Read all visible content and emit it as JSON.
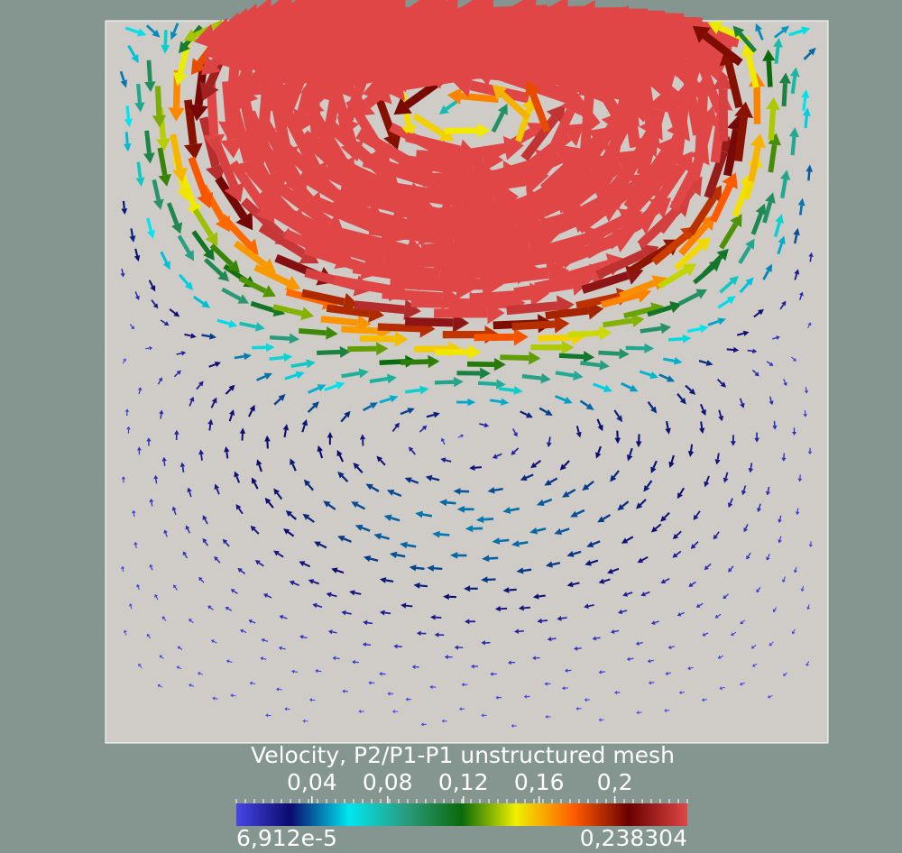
{
  "chart_data": {
    "type": "vector-field",
    "title": "Velocity, P2/P1-P1 unstructured mesh",
    "scalar_range": [
      6.912e-05,
      0.238304
    ],
    "range_labels": {
      "min": "6,912e-5",
      "max": "0,238304"
    },
    "colorbar_ticks": [
      {
        "value": 0.04,
        "label": "0,04"
      },
      {
        "value": 0.08,
        "label": "0,08"
      },
      {
        "value": 0.12,
        "label": "0,12"
      },
      {
        "value": 0.16,
        "label": "0,16"
      },
      {
        "value": 0.2,
        "label": "0,2"
      }
    ],
    "colormap": [
      {
        "t": 0.0,
        "color": "#4646e6"
      },
      {
        "t": 0.12,
        "color": "#0a0a6e"
      },
      {
        "t": 0.25,
        "color": "#00e6f0"
      },
      {
        "t": 0.38,
        "color": "#2a9a7a"
      },
      {
        "t": 0.5,
        "color": "#0a6a0a"
      },
      {
        "t": 0.62,
        "color": "#f0f000"
      },
      {
        "t": 0.75,
        "color": "#ff5a00"
      },
      {
        "t": 0.87,
        "color": "#6a0000"
      },
      {
        "t": 1.0,
        "color": "#e04646"
      }
    ],
    "domain": {
      "x": [
        0,
        1
      ],
      "y": [
        0,
        1
      ]
    },
    "lid_velocity": 0.238304,
    "background_color": "#859690",
    "domain_color": "#cfccc7"
  }
}
